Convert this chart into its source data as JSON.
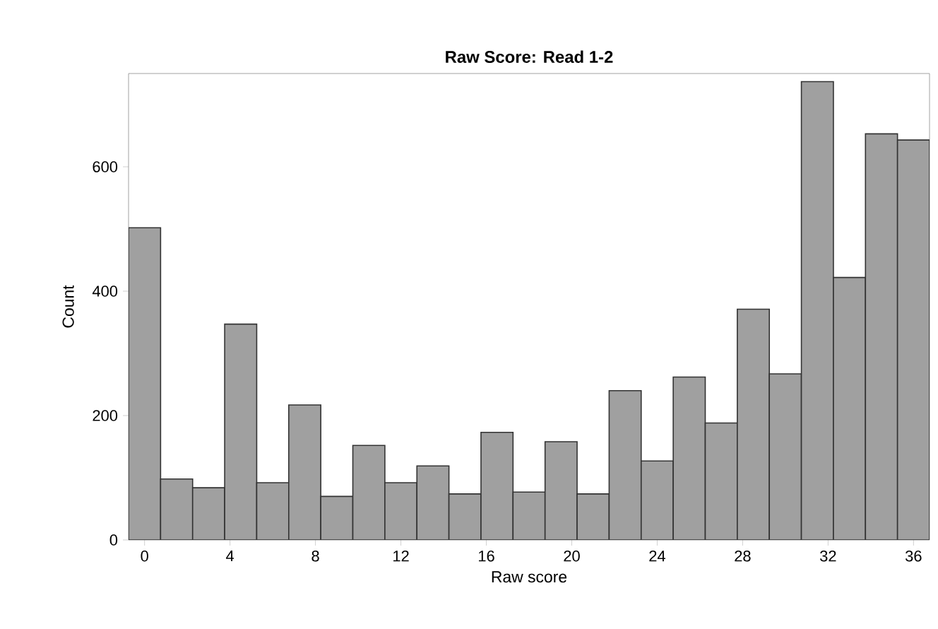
{
  "chart_data": {
    "type": "histogram",
    "title": "Raw Score: Read 1-2",
    "xlabel": "Raw score",
    "ylabel": "Count",
    "bins": [
      -0.75,
      0.75,
      2.25,
      3.75,
      5.25,
      6.75,
      8.25,
      9.75,
      11.25,
      12.75,
      14.25,
      15.75,
      17.25,
      18.75,
      20.25,
      21.75,
      23.25,
      24.75,
      26.25,
      27.75,
      29.25,
      30.75,
      32.25,
      33.75,
      35.25,
      36.75
    ],
    "values": [
      502,
      98,
      84,
      347,
      92,
      217,
      70,
      152,
      92,
      119,
      74,
      173,
      77,
      158,
      74,
      240,
      127,
      262,
      188,
      371,
      267,
      737,
      422,
      653,
      643
    ],
    "color": "#a0a0a0",
    "xlim": [
      -0.75,
      36.75
    ],
    "ylim": [
      0,
      750
    ],
    "xticks": [
      0,
      4,
      8,
      12,
      16,
      20,
      24,
      28,
      32,
      36
    ],
    "yticks": [
      0,
      200,
      400,
      600
    ],
    "grid": false
  }
}
